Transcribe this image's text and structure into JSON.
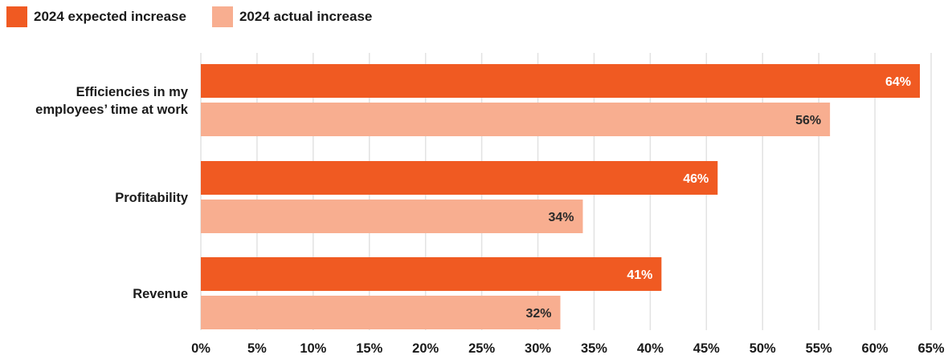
{
  "chart_data": {
    "type": "bar",
    "orientation": "horizontal",
    "categories": [
      [
        "Efficiencies in my",
        "employees’ time at work"
      ],
      [
        "Profitability"
      ],
      [
        "Revenue"
      ]
    ],
    "series": [
      {
        "name": "2024 expected increase",
        "values": [
          64,
          46,
          41
        ],
        "color": "#f05a22",
        "label_color": "#ffffff"
      },
      {
        "name": "2024 actual increase",
        "values": [
          56,
          34,
          32
        ],
        "color": "#f8ae90",
        "label_color": "#2a2a2a"
      }
    ],
    "value_suffix": "%",
    "xlim": [
      0,
      65
    ],
    "xticks": [
      0,
      5,
      10,
      15,
      20,
      25,
      30,
      35,
      40,
      45,
      50,
      55,
      60,
      65
    ],
    "tick_suffix": "%",
    "grid": "vertical",
    "legend_position": "top-left",
    "title": "",
    "xlabel": "",
    "ylabel": ""
  }
}
